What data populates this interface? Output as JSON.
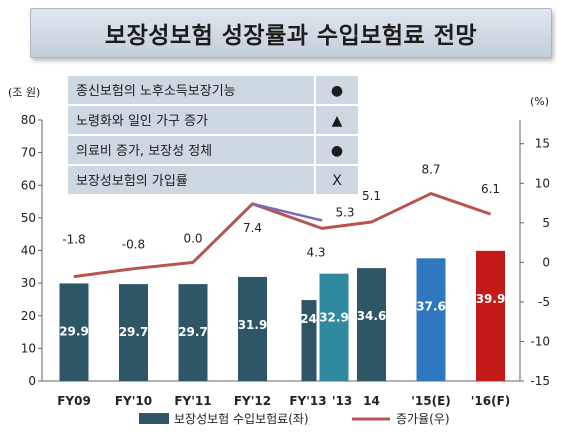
{
  "title": "보장성보험 성장률과 수입보험료 전망",
  "factors": [
    {
      "label": "종신보험의 노후소득보장기능",
      "mark": "●"
    },
    {
      "label": "노령화와 일인 가구 증가",
      "mark": "▲"
    },
    {
      "label": "의료비 증가, 보장성 정체",
      "mark": "●"
    },
    {
      "label": "보장성보험의 가입률",
      "mark": "X"
    }
  ],
  "chart_data": {
    "type": "bar",
    "categories": [
      "FY09",
      "FY'10",
      "FY'11",
      "FY'12",
      "FY'13",
      "'13",
      "14",
      "'15(E)",
      "'16(F)"
    ],
    "y_left": {
      "unit": "(조 원)",
      "ticks": [
        0,
        10,
        20,
        30,
        40,
        50,
        60,
        70,
        80
      ],
      "range": [
        0,
        80
      ]
    },
    "y_right": {
      "unit": "(%)",
      "ticks": [
        -15,
        -10,
        -5,
        0,
        5,
        10,
        15
      ],
      "range": [
        -15,
        18
      ]
    },
    "series": [
      {
        "name": "보장성보험 수입보험료(좌)",
        "kind": "bar",
        "axis": "left",
        "values": [
          29.9,
          29.7,
          29.7,
          31.9,
          24.8,
          32.9,
          34.6,
          37.6,
          39.9
        ],
        "labels": [
          "29.9",
          "29.7",
          "29.7",
          "31.9",
          "24.8",
          "32.9",
          "34.6",
          "37.6",
          "39.9"
        ],
        "colors": [
          "#2e5667",
          "#2e5667",
          "#2e5667",
          "#2e5667",
          "#2e5667",
          "#2f8aa0",
          "#2e5667",
          "#2f78c0",
          "#c41a1a"
        ]
      },
      {
        "name": "증가율(우)",
        "kind": "line",
        "axis": "right",
        "color": "#b85450",
        "points": [
          {
            "x": "FY09",
            "y": -1.8,
            "label": "-1.8"
          },
          {
            "x": "FY'10",
            "y": -0.8,
            "label": "-0.8"
          },
          {
            "x": "FY'11",
            "y": 0.0,
            "label": "0.0"
          },
          {
            "x": "FY'12",
            "y": 7.4,
            "label": "7.4"
          },
          {
            "x": "FY'13",
            "y": 4.3,
            "label": "4.3"
          },
          {
            "x": "14",
            "y": 5.1,
            "label": "5.1"
          },
          {
            "x": "'15(E)",
            "y": 8.7,
            "label": "8.7"
          },
          {
            "x": "'16(F)",
            "y": 6.1,
            "label": "6.1"
          }
        ]
      },
      {
        "kind": "line",
        "axis": "right",
        "color": "#7b6bb5",
        "points": [
          {
            "x": "FY'12",
            "y": 7.4
          },
          {
            "x": "FY'13",
            "y": 5.3,
            "label": "5.3"
          }
        ]
      }
    ],
    "legend": {
      "position": "bottom",
      "entries": [
        "보장성보험 수입보험료(좌)",
        "증가율(우)"
      ]
    },
    "colors": {
      "bar_main": "#2e5667",
      "line": "#b85450",
      "line_alt": "#7b6bb5"
    }
  }
}
